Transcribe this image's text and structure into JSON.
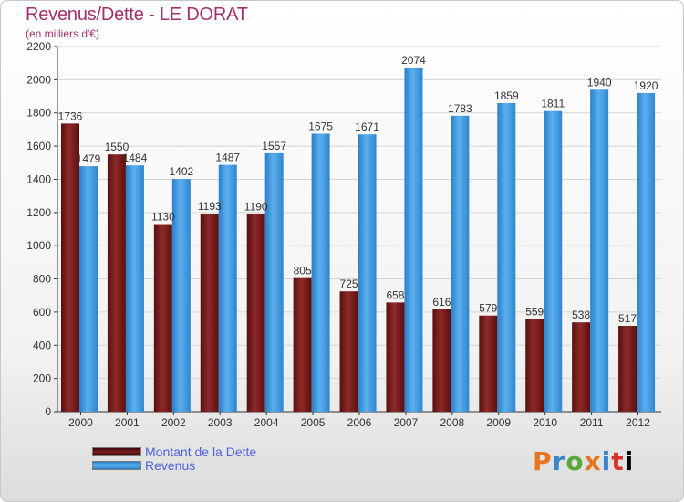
{
  "header": {
    "title": "Revenus/Dette - LE DORAT",
    "subtitle": "(en milliers d'€)"
  },
  "legend": {
    "items": [
      "Montant de la Dette",
      "Revenus"
    ]
  },
  "logo": {
    "letters": [
      "P",
      "r",
      "o",
      "x",
      "i",
      "t",
      "i"
    ]
  },
  "colors": {
    "dette": "#7a1c1c",
    "revenus": "#3d95e0",
    "title": "#a3306b",
    "legend_text": "#4f63e0"
  },
  "chart_data": {
    "type": "bar",
    "title": "Revenus/Dette - LE DORAT",
    "subtitle": "(en milliers d'€)",
    "categories": [
      "2000",
      "2001",
      "2002",
      "2003",
      "2004",
      "2005",
      "2006",
      "2007",
      "2008",
      "2009",
      "2010",
      "2011",
      "2012"
    ],
    "series": [
      {
        "name": "Montant de la Dette",
        "values": [
          1736,
          1550,
          1130,
          1193,
          1190,
          805,
          725,
          658,
          616,
          579,
          559,
          538,
          517
        ],
        "labels": [
          "1736",
          "1550",
          "1130",
          "1193",
          "1190",
          "805",
          "725",
          "658",
          "616",
          "579",
          "559",
          "538",
          "517"
        ]
      },
      {
        "name": "Revenus",
        "values": [
          1479,
          1484,
          1402,
          1487,
          1557,
          1675,
          1671,
          2074,
          1783,
          1859,
          1811,
          1940,
          1920
        ],
        "labels": [
          "1479",
          "1484",
          "1402",
          "1487",
          "1557",
          "1675",
          "1671",
          "2074",
          "1783",
          "1859",
          "1811",
          "1940",
          "1920"
        ]
      }
    ],
    "ylim": [
      0,
      2200
    ],
    "yticks": [
      0,
      200,
      400,
      600,
      800,
      1000,
      1200,
      1400,
      1600,
      1800,
      2000,
      2200
    ],
    "grid": true,
    "legend_position": "bottom-left"
  }
}
